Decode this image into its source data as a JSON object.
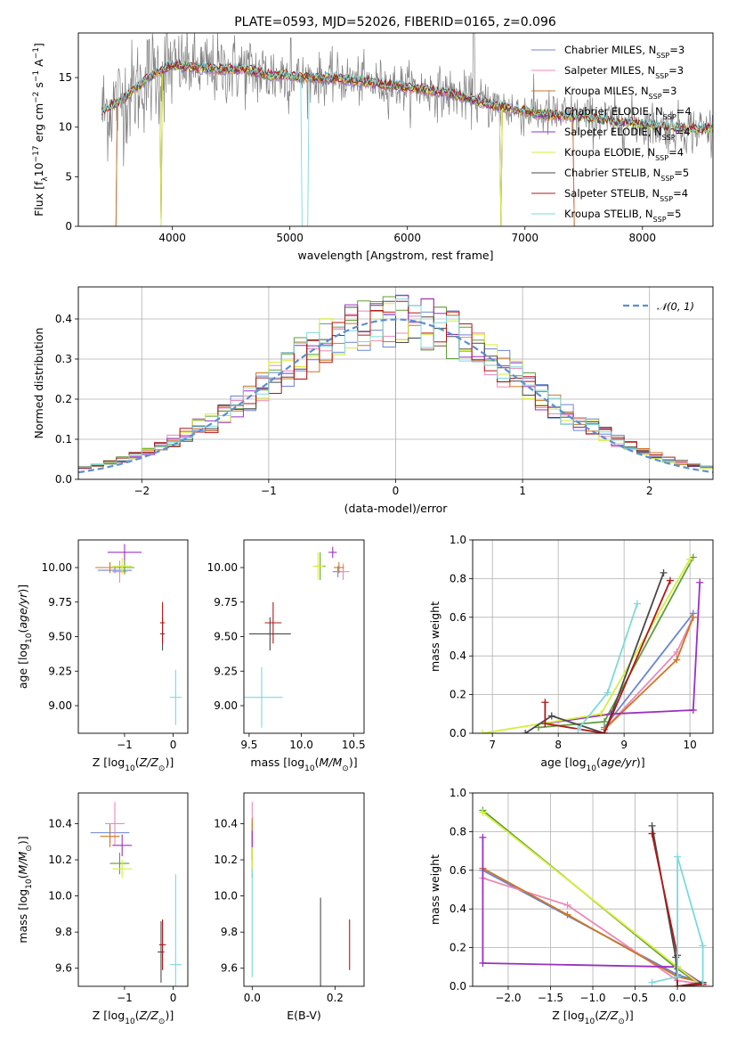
{
  "figure": {
    "title": "PLATE=0593, MJD=52026, FIBERID=0165, z=0.096"
  },
  "colors": {
    "Chabrier MILES": "#6a84d8",
    "Salpeter MILES": "#ee88b4",
    "Kroupa MILES": "#cc7722",
    "Chabrier ELODIE": "#5f9e3a",
    "Salpeter ELODIE": "#9b30c0",
    "Kroupa ELODIE": "#d6ee3c",
    "Chabrier STELIB": "#4a4a4a",
    "Salpeter STELIB": "#b01818",
    "Kroupa STELIB": "#7ed8dc",
    "data_spectrum": "#808080",
    "gauss": "#5b8fd4",
    "grid": "#b0b0b0"
  },
  "chart_data": [
    {
      "id": "spectrum",
      "type": "line",
      "title": "PLATE=0593, MJD=52026, FIBERID=0165, z=0.096",
      "xlabel": "wavelength [Angstrom, rest frame]",
      "ylabel_html": "Flux [f<tspan baseline-shift='sub' font-size='9'>λ</tspan>10<tspan baseline-shift='super' font-size='9'>−17</tspan> erg cm<tspan baseline-shift='super' font-size='9'>−2</tspan> s<tspan baseline-shift='super' font-size='9'>−1</tspan> A<tspan baseline-shift='super' font-size='9'>−1</tspan>]",
      "xlim": [
        3200,
        8600
      ],
      "ylim": [
        0,
        19.5
      ],
      "xticks": [
        4000,
        5000,
        6000,
        7000,
        8000
      ],
      "yticks": [
        0,
        5,
        10,
        15
      ],
      "grid": false,
      "legend_placement": "upper right",
      "legend": [
        {
          "name": "Chabrier MILES",
          "nssp": "3"
        },
        {
          "name": "Salpeter MILES",
          "nssp": "3"
        },
        {
          "name": "Kroupa MILES",
          "nssp": "3"
        },
        {
          "name": "Chabrier ELODIE",
          "nssp": "4"
        },
        {
          "name": "Salpeter ELODIE",
          "nssp": "4"
        },
        {
          "name": "Kroupa ELODIE",
          "nssp": "4"
        },
        {
          "name": "Chabrier STELIB",
          "nssp": "5"
        },
        {
          "name": "Salpeter STELIB",
          "nssp": "4"
        },
        {
          "name": "Kroupa STELIB",
          "nssp": "5"
        }
      ],
      "continuum": {
        "x": [
          3400,
          3600,
          3800,
          4000,
          4200,
          4400,
          4600,
          4800,
          5000,
          5200,
          5400,
          5600,
          5800,
          6000,
          6200,
          6400,
          6600,
          6800,
          7000,
          7200,
          7400,
          7600,
          7800,
          8000,
          8200,
          8400
        ],
        "y": [
          11.5,
          13.0,
          15.0,
          16.3,
          16.0,
          15.8,
          15.9,
          15.3,
          15.2,
          14.9,
          14.9,
          14.6,
          14.3,
          14.0,
          13.7,
          13.3,
          12.6,
          12.0,
          11.6,
          11.2,
          11.1,
          10.8,
          10.5,
          10.3,
          10.0,
          9.8
        ]
      }
    },
    {
      "id": "residuals",
      "type": "line",
      "xlabel": "(data-model)/error",
      "ylabel": "Normed distribution",
      "xlim": [
        -2.5,
        2.5
      ],
      "ylim": [
        0,
        0.48
      ],
      "xticks": [
        -2,
        -1,
        0,
        1,
        2
      ],
      "yticks": [
        0.0,
        0.1,
        0.2,
        0.3,
        0.4
      ],
      "grid": true,
      "legend_placement": "upper right",
      "gaussian_label": "𝒩(0, 1)"
    },
    {
      "id": "age_vs_Z",
      "type": "scatter",
      "xlabel_html": "Z [log<tspan baseline-shift='sub' font-size='9'>10</tspan>(<tspan font-style='italic'>Z/Z</tspan><tspan baseline-shift='sub' font-size='9'>⊙</tspan>)]",
      "ylabel_html": "age  [log<tspan baseline-shift='sub' font-size='9'>10</tspan>(<tspan font-style='italic'>age/yr</tspan>)]",
      "xlim": [
        -1.95,
        0.3
      ],
      "ylim": [
        8.8,
        10.2
      ],
      "xticks": [
        -1,
        0
      ],
      "yticks": [
        9.0,
        9.25,
        9.5,
        9.75,
        10.0
      ],
      "points": [
        {
          "model": "Chabrier MILES",
          "x": -1.2,
          "y": 9.98,
          "xerr": 0.35,
          "yerr": 0.02
        },
        {
          "model": "Salpeter MILES",
          "x": -1.1,
          "y": 9.97,
          "xerr": 0.15,
          "yerr": 0.08
        },
        {
          "model": "Kroupa MILES",
          "x": -1.3,
          "y": 10.0,
          "xerr": 0.3,
          "yerr": 0.04
        },
        {
          "model": "Chabrier ELODIE",
          "x": -1.0,
          "y": 10.0,
          "xerr": 0.2,
          "yerr": 0.05
        },
        {
          "model": "Salpeter ELODIE",
          "x": -1.0,
          "y": 10.11,
          "xerr": 0.35,
          "yerr": 0.06
        },
        {
          "model": "Kroupa ELODIE",
          "x": -1.05,
          "y": 10.01,
          "xerr": 0.2,
          "yerr": 0.06
        },
        {
          "model": "Chabrier STELIB",
          "x": -0.22,
          "y": 9.52,
          "xerr": 0.05,
          "yerr": 0.12
        },
        {
          "model": "Salpeter STELIB",
          "x": -0.22,
          "y": 9.6,
          "xerr": 0.05,
          "yerr": 0.15
        },
        {
          "model": "Kroupa STELIB",
          "x": 0.05,
          "y": 9.06,
          "xerr": 0.12,
          "yerr": 0.2
        }
      ]
    },
    {
      "id": "age_vs_mass",
      "type": "scatter",
      "xlabel_html": "mass [log<tspan baseline-shift='sub' font-size='9'>10</tspan>(<tspan font-style='italic'>M/M</tspan><tspan baseline-shift='sub' font-size='9'>⊙</tspan>)]",
      "xlim": [
        9.45,
        10.6
      ],
      "ylim": [
        8.8,
        10.2
      ],
      "xticks": [
        9.5,
        10.0,
        10.5
      ],
      "yticks": [
        9.0,
        9.25,
        9.5,
        9.75,
        10.0
      ],
      "points": [
        {
          "model": "Chabrier MILES",
          "x": 10.35,
          "y": 9.97,
          "xerr": 0.05,
          "yerr": 0.04
        },
        {
          "model": "Salpeter MILES",
          "x": 10.4,
          "y": 9.97,
          "xerr": 0.06,
          "yerr": 0.06
        },
        {
          "model": "Kroupa MILES",
          "x": 10.36,
          "y": 10.0,
          "xerr": 0.05,
          "yerr": 0.04
        },
        {
          "model": "Chabrier ELODIE",
          "x": 10.18,
          "y": 10.01,
          "xerr": 0.05,
          "yerr": 0.1
        },
        {
          "model": "Salpeter ELODIE",
          "x": 10.3,
          "y": 10.11,
          "xerr": 0.04,
          "yerr": 0.04
        },
        {
          "model": "Kroupa ELODIE",
          "x": 10.16,
          "y": 10.01,
          "xerr": 0.05,
          "yerr": 0.1
        },
        {
          "model": "Chabrier STELIB",
          "x": 9.7,
          "y": 9.52,
          "xerr": 0.2,
          "yerr": 0.12
        },
        {
          "model": "Salpeter STELIB",
          "x": 9.73,
          "y": 9.6,
          "xerr": 0.08,
          "yerr": 0.15
        },
        {
          "model": "Kroupa STELIB",
          "x": 9.62,
          "y": 9.06,
          "xerr": 0.2,
          "yerr": 0.22
        }
      ]
    },
    {
      "id": "weight_vs_age",
      "type": "line",
      "xlabel_html": "age  [log<tspan baseline-shift='sub' font-size='9'>10</tspan>(<tspan font-style='italic'>age/yr</tspan>)]",
      "ylabel": "mass weight",
      "xlim": [
        6.7,
        10.35
      ],
      "ylim": [
        0,
        1.0
      ],
      "xticks": [
        7,
        8,
        9,
        10
      ],
      "yticks": [
        0.0,
        0.2,
        0.4,
        0.6,
        0.8,
        1.0
      ],
      "grid": true,
      "series": [
        {
          "model": "Chabrier MILES",
          "x": [
            8.7,
            10.05
          ],
          "y": [
            0.03,
            0.62
          ]
        },
        {
          "model": "Salpeter MILES",
          "x": [
            8.7,
            9.8,
            10.05
          ],
          "y": [
            0.02,
            0.42,
            0.6
          ]
        },
        {
          "model": "Kroupa MILES",
          "x": [
            8.7,
            9.8,
            10.05
          ],
          "y": [
            0.02,
            0.38,
            0.6
          ]
        },
        {
          "model": "Chabrier ELODIE",
          "x": [
            7.7,
            8.7,
            10.05
          ],
          "y": [
            0.03,
            0.06,
            0.91
          ]
        },
        {
          "model": "Salpeter ELODIE",
          "x": [
            7.8,
            8.8,
            10.05,
            10.15
          ],
          "y": [
            0.05,
            0.1,
            0.12,
            0.78
          ]
        },
        {
          "model": "Kroupa ELODIE",
          "x": [
            6.85,
            8.65,
            10.0
          ],
          "y": [
            0.0,
            0.1,
            0.9
          ]
        },
        {
          "model": "Chabrier STELIB",
          "x": [
            7.5,
            7.9,
            8.7,
            9.6
          ],
          "y": [
            0.0,
            0.09,
            0.0,
            0.83
          ]
        },
        {
          "model": "Salpeter STELIB",
          "x": [
            7.8,
            7.8,
            8.7,
            9.7
          ],
          "y": [
            0.16,
            0.05,
            0.0,
            0.79
          ]
        },
        {
          "model": "Kroupa STELIB",
          "x": [
            8.3,
            8.75,
            9.2
          ],
          "y": [
            0.02,
            0.21,
            0.67
          ]
        }
      ]
    },
    {
      "id": "mass_vs_Z",
      "type": "scatter",
      "xlabel_html": "Z [log<tspan baseline-shift='sub' font-size='9'>10</tspan>(<tspan font-style='italic'>Z/Z</tspan><tspan baseline-shift='sub' font-size='9'>⊙</tspan>)]",
      "ylabel_html": "mass [log<tspan baseline-shift='sub' font-size='9'>10</tspan>(<tspan font-style='italic'>M/M</tspan><tspan baseline-shift='sub' font-size='9'>⊙</tspan>)]",
      "xlim": [
        -1.95,
        0.3
      ],
      "ylim": [
        9.5,
        10.57
      ],
      "xticks": [
        -1,
        0
      ],
      "yticks": [
        9.6,
        9.8,
        10.0,
        10.2,
        10.4
      ],
      "points": [
        {
          "model": "Chabrier MILES",
          "x": -1.3,
          "y": 10.35,
          "xerr": 0.4,
          "yerr": 0.05
        },
        {
          "model": "Salpeter MILES",
          "x": -1.2,
          "y": 10.4,
          "xerr": 0.2,
          "yerr": 0.12
        },
        {
          "model": "Kroupa MILES",
          "x": -1.3,
          "y": 10.33,
          "xerr": 0.2,
          "yerr": 0.06
        },
        {
          "model": "Chabrier ELODIE",
          "x": -1.1,
          "y": 10.18,
          "xerr": 0.2,
          "yerr": 0.06
        },
        {
          "model": "Salpeter ELODIE",
          "x": -1.05,
          "y": 10.28,
          "xerr": 0.2,
          "yerr": 0.06
        },
        {
          "model": "Kroupa ELODIE",
          "x": -1.05,
          "y": 10.15,
          "xerr": 0.2,
          "yerr": 0.05
        },
        {
          "model": "Chabrier STELIB",
          "x": -0.25,
          "y": 9.69,
          "xerr": 0.07,
          "yerr": 0.17
        },
        {
          "model": "Salpeter STELIB",
          "x": -0.22,
          "y": 9.73,
          "xerr": 0.07,
          "yerr": 0.14
        },
        {
          "model": "Kroupa STELIB",
          "x": 0.05,
          "y": 9.62,
          "xerr": 0.12,
          "yerr": 0.5
        }
      ]
    },
    {
      "id": "mass_vs_ebv",
      "type": "scatter",
      "xlabel": "E(B-V)",
      "xlim": [
        -0.02,
        0.27
      ],
      "ylim": [
        9.5,
        10.57
      ],
      "xticks": [
        0.0,
        0.2
      ],
      "yticks": [
        9.6,
        9.8,
        10.0,
        10.2,
        10.4
      ],
      "points": [
        {
          "model": "Chabrier MILES",
          "x": 0.0,
          "y": 10.3,
          "xerr": 0.0,
          "yerr": 0.1
        },
        {
          "model": "Salpeter MILES",
          "x": 0.0,
          "y": 10.4,
          "xerr": 0.0,
          "yerr": 0.12
        },
        {
          "model": "Kroupa MILES",
          "x": 0.0,
          "y": 10.35,
          "xerr": 0.0,
          "yerr": 0.08
        },
        {
          "model": "Chabrier ELODIE",
          "x": 0.0,
          "y": 10.18,
          "xerr": 0.0,
          "yerr": 0.08
        },
        {
          "model": "Salpeter ELODIE",
          "x": 0.0,
          "y": 10.28,
          "xerr": 0.0,
          "yerr": 0.08
        },
        {
          "model": "Kroupa ELODIE",
          "x": 0.0,
          "y": 10.2,
          "xerr": 0.0,
          "yerr": 0.07
        },
        {
          "model": "Chabrier STELIB",
          "x": 0.165,
          "y": 9.7,
          "xerr": 0.0,
          "yerr": 0.29
        },
        {
          "model": "Salpeter STELIB",
          "x": 0.235,
          "y": 9.73,
          "xerr": 0.0,
          "yerr": 0.14
        },
        {
          "model": "Kroupa STELIB",
          "x": 0.0,
          "y": 9.85,
          "xerr": 0.0,
          "yerr": 0.3
        }
      ]
    },
    {
      "id": "weight_vs_Z",
      "type": "line",
      "xlabel_html": "Z [log<tspan baseline-shift='sub' font-size='9'>10</tspan>(<tspan font-style='italic'>Z/Z</tspan><tspan baseline-shift='sub' font-size='9'>⊙</tspan>)]",
      "ylabel": "mass weight",
      "xlim": [
        -2.42,
        0.42
      ],
      "ylim": [
        0,
        1.0
      ],
      "xticks": [
        -2.0,
        -1.5,
        -1.0,
        -0.5,
        0.0
      ],
      "yticks": [
        0.0,
        0.2,
        0.4,
        0.6,
        0.8,
        1.0
      ],
      "grid": true,
      "series": [
        {
          "model": "Chabrier MILES",
          "x": [
            -2.3,
            0.0,
            0.3
          ],
          "y": [
            0.6,
            0.06,
            0.02
          ]
        },
        {
          "model": "Salpeter MILES",
          "x": [
            -2.3,
            -1.3,
            0.0,
            0.3
          ],
          "y": [
            0.56,
            0.42,
            0.03,
            0.01
          ]
        },
        {
          "model": "Kroupa MILES",
          "x": [
            -2.3,
            -1.3,
            0.0,
            0.3
          ],
          "y": [
            0.61,
            0.37,
            0.05,
            0.02
          ]
        },
        {
          "model": "Chabrier ELODIE",
          "x": [
            -2.3,
            0.0,
            0.3
          ],
          "y": [
            0.91,
            0.09,
            0.0
          ]
        },
        {
          "model": "Salpeter ELODIE",
          "x": [
            -2.3,
            -2.3,
            0.0,
            0.3
          ],
          "y": [
            0.77,
            0.12,
            0.1,
            0.01
          ]
        },
        {
          "model": "Kroupa ELODIE",
          "x": [
            -2.3,
            0.0,
            0.3
          ],
          "y": [
            0.9,
            0.1,
            0.0
          ]
        },
        {
          "model": "Chabrier STELIB",
          "x": [
            -0.3,
            -0.02,
            0.0,
            0.3
          ],
          "y": [
            0.83,
            0.15,
            0.0,
            0.02
          ]
        },
        {
          "model": "Salpeter STELIB",
          "x": [
            -0.3,
            0.0,
            0.0,
            0.3
          ],
          "y": [
            0.79,
            0.16,
            0.0,
            0.01
          ]
        },
        {
          "model": "Kroupa STELIB",
          "x": [
            -0.3,
            0.0,
            0.0,
            0.3,
            0.3
          ],
          "y": [
            0.02,
            0.05,
            0.67,
            0.21,
            0.0
          ]
        }
      ]
    }
  ]
}
